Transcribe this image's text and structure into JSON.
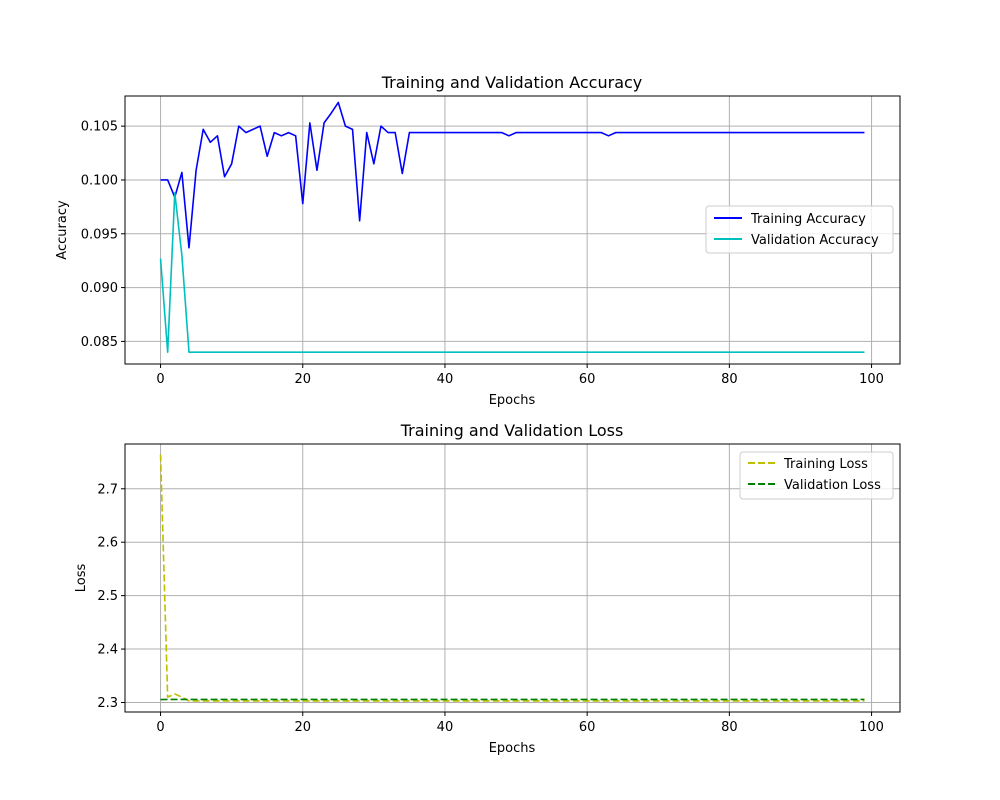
{
  "chart_data": [
    {
      "type": "line",
      "title": "Training and Validation Accuracy",
      "xlabel": "Epochs",
      "ylabel": "Accuracy",
      "xlim": [
        -5,
        104
      ],
      "ylim": [
        0.0829,
        0.1078
      ],
      "xticks": [
        0,
        20,
        40,
        60,
        80,
        100
      ],
      "yticks": [
        0.085,
        0.09,
        0.095,
        0.1,
        0.105
      ],
      "xtick_labels": [
        "0",
        "20",
        "40",
        "60",
        "80",
        "100"
      ],
      "ytick_labels": [
        "0.085",
        "0.090",
        "0.095",
        "0.100",
        "0.105"
      ],
      "grid": true,
      "legend_position": "center-right",
      "series": [
        {
          "name": "Training Accuracy",
          "color": "#0000ff",
          "dash": "solid",
          "x": [
            0,
            1,
            2,
            3,
            4,
            5,
            6,
            7,
            8,
            9,
            10,
            11,
            12,
            13,
            14,
            15,
            16,
            17,
            18,
            19,
            20,
            21,
            22,
            23,
            24,
            25,
            26,
            27,
            28,
            29,
            30,
            31,
            32,
            33,
            34,
            35,
            36,
            37,
            38,
            39,
            40,
            41,
            42,
            43,
            44,
            45,
            46,
            47,
            48,
            49,
            50,
            51,
            52,
            53,
            54,
            55,
            56,
            57,
            58,
            59,
            60,
            61,
            62,
            63,
            64,
            65,
            66,
            67,
            68,
            69,
            70,
            71,
            72,
            73,
            74,
            75,
            76,
            77,
            78,
            79,
            80,
            81,
            82,
            83,
            84,
            85,
            86,
            87,
            88,
            89,
            90,
            91,
            92,
            93,
            94,
            95,
            96,
            97,
            98,
            99
          ],
          "values": [
            0.1,
            0.1,
            0.0984,
            0.1007,
            0.0937,
            0.1009,
            0.1047,
            0.1035,
            0.1041,
            0.1003,
            0.1015,
            0.105,
            0.1044,
            0.1047,
            0.105,
            0.1022,
            0.1044,
            0.1041,
            0.1044,
            0.1041,
            0.0978,
            0.1053,
            0.1009,
            0.1053,
            0.1062,
            0.1072,
            0.105,
            0.1047,
            0.0962,
            0.1044,
            0.1015,
            0.105,
            0.1044,
            0.1044,
            0.1006,
            0.1044,
            0.1044,
            0.1044,
            0.1044,
            0.1044,
            0.1044,
            0.1044,
            0.1044,
            0.1044,
            0.1044,
            0.1044,
            0.1044,
            0.1044,
            0.1044,
            0.1041,
            0.1044,
            0.1044,
            0.1044,
            0.1044,
            0.1044,
            0.1044,
            0.1044,
            0.1044,
            0.1044,
            0.1044,
            0.1044,
            0.1044,
            0.1044,
            0.1041,
            0.1044,
            0.1044,
            0.1044,
            0.1044,
            0.1044,
            0.1044,
            0.1044,
            0.1044,
            0.1044,
            0.1044,
            0.1044,
            0.1044,
            0.1044,
            0.1044,
            0.1044,
            0.1044,
            0.1044,
            0.1044,
            0.1044,
            0.1044,
            0.1044,
            0.1044,
            0.1044,
            0.1044,
            0.1044,
            0.1044,
            0.1044,
            0.1044,
            0.1044,
            0.1044,
            0.1044,
            0.1044,
            0.1044,
            0.1044,
            0.1044,
            0.1044
          ]
        },
        {
          "name": "Validation Accuracy",
          "color": "#00bfbf",
          "dash": "solid",
          "x": [
            0,
            1,
            2,
            3,
            4,
            5,
            6,
            7,
            8,
            9,
            10,
            11,
            12,
            13,
            14,
            15,
            16,
            17,
            18,
            19,
            20,
            21,
            22,
            23,
            24,
            25,
            26,
            27,
            28,
            29,
            30,
            31,
            32,
            33,
            34,
            35,
            36,
            37,
            38,
            39,
            40,
            41,
            42,
            43,
            44,
            45,
            46,
            47,
            48,
            49,
            50,
            51,
            52,
            53,
            54,
            55,
            56,
            57,
            58,
            59,
            60,
            61,
            62,
            63,
            64,
            65,
            66,
            67,
            68,
            69,
            70,
            71,
            72,
            73,
            74,
            75,
            76,
            77,
            78,
            79,
            80,
            81,
            82,
            83,
            84,
            85,
            86,
            87,
            88,
            89,
            90,
            91,
            92,
            93,
            94,
            95,
            96,
            97,
            98,
            99
          ],
          "values": [
            0.0927,
            0.084,
            0.0988,
            0.093,
            0.084,
            0.084,
            0.084,
            0.084,
            0.084,
            0.084,
            0.084,
            0.084,
            0.084,
            0.084,
            0.084,
            0.084,
            0.084,
            0.084,
            0.084,
            0.084,
            0.084,
            0.084,
            0.084,
            0.084,
            0.084,
            0.084,
            0.084,
            0.084,
            0.084,
            0.084,
            0.084,
            0.084,
            0.084,
            0.084,
            0.084,
            0.084,
            0.084,
            0.084,
            0.084,
            0.084,
            0.084,
            0.084,
            0.084,
            0.084,
            0.084,
            0.084,
            0.084,
            0.084,
            0.084,
            0.084,
            0.084,
            0.084,
            0.084,
            0.084,
            0.084,
            0.084,
            0.084,
            0.084,
            0.084,
            0.084,
            0.084,
            0.084,
            0.084,
            0.084,
            0.084,
            0.084,
            0.084,
            0.084,
            0.084,
            0.084,
            0.084,
            0.084,
            0.084,
            0.084,
            0.084,
            0.084,
            0.084,
            0.084,
            0.084,
            0.084,
            0.084,
            0.084,
            0.084,
            0.084,
            0.084,
            0.084,
            0.084,
            0.084,
            0.084,
            0.084,
            0.084,
            0.084,
            0.084,
            0.084,
            0.084,
            0.084,
            0.084,
            0.084,
            0.084,
            0.084
          ]
        }
      ]
    },
    {
      "type": "line",
      "title": "Training and Validation Loss",
      "xlabel": "Epochs",
      "ylabel": "Loss",
      "xlim": [
        -5,
        104
      ],
      "ylim": [
        2.2822,
        2.7838
      ],
      "xticks": [
        0,
        20,
        40,
        60,
        80,
        100
      ],
      "yticks": [
        2.3,
        2.4,
        2.5,
        2.6,
        2.7
      ],
      "xtick_labels": [
        "0",
        "20",
        "40",
        "60",
        "80",
        "100"
      ],
      "ytick_labels": [
        "2.3",
        "2.4",
        "2.5",
        "2.6",
        "2.7"
      ],
      "grid": true,
      "legend_position": "top-right",
      "series": [
        {
          "name": "Training Loss",
          "color": "#bfbf00",
          "dash": "dashed",
          "x": [
            0,
            1,
            2,
            3,
            4,
            5,
            6,
            7,
            8,
            9,
            10,
            11,
            12,
            13,
            14,
            15,
            16,
            17,
            18,
            19,
            20,
            21,
            22,
            23,
            24,
            25,
            26,
            27,
            28,
            29,
            30,
            31,
            32,
            33,
            34,
            35,
            36,
            37,
            38,
            39,
            40,
            41,
            42,
            43,
            44,
            45,
            46,
            47,
            48,
            49,
            50,
            51,
            52,
            53,
            54,
            55,
            56,
            57,
            58,
            59,
            60,
            61,
            62,
            63,
            64,
            65,
            66,
            67,
            68,
            69,
            70,
            71,
            72,
            73,
            74,
            75,
            76,
            77,
            78,
            79,
            80,
            81,
            82,
            83,
            84,
            85,
            86,
            87,
            88,
            89,
            90,
            91,
            92,
            93,
            94,
            95,
            96,
            97,
            98,
            99
          ],
          "values": [
            2.764,
            2.31,
            2.316,
            2.31,
            2.303,
            2.303,
            2.303,
            2.303,
            2.303,
            2.303,
            2.303,
            2.303,
            2.303,
            2.303,
            2.303,
            2.303,
            2.303,
            2.303,
            2.303,
            2.303,
            2.303,
            2.303,
            2.303,
            2.303,
            2.303,
            2.303,
            2.303,
            2.303,
            2.303,
            2.303,
            2.303,
            2.303,
            2.303,
            2.303,
            2.303,
            2.303,
            2.303,
            2.303,
            2.303,
            2.303,
            2.303,
            2.303,
            2.303,
            2.303,
            2.303,
            2.303,
            2.303,
            2.303,
            2.303,
            2.303,
            2.303,
            2.303,
            2.303,
            2.303,
            2.303,
            2.303,
            2.303,
            2.303,
            2.303,
            2.303,
            2.303,
            2.303,
            2.303,
            2.303,
            2.303,
            2.303,
            2.303,
            2.303,
            2.303,
            2.303,
            2.303,
            2.303,
            2.303,
            2.303,
            2.303,
            2.303,
            2.303,
            2.303,
            2.303,
            2.303,
            2.303,
            2.303,
            2.303,
            2.303,
            2.303,
            2.303,
            2.303,
            2.303,
            2.303,
            2.303,
            2.303,
            2.303,
            2.303,
            2.303,
            2.303,
            2.303,
            2.303,
            2.303,
            2.303,
            2.303
          ]
        },
        {
          "name": "Validation Loss",
          "color": "#008000",
          "dash": "dashed",
          "x": [
            0,
            1,
            2,
            3,
            4,
            5,
            6,
            7,
            8,
            9,
            10,
            11,
            12,
            13,
            14,
            15,
            16,
            17,
            18,
            19,
            20,
            21,
            22,
            23,
            24,
            25,
            26,
            27,
            28,
            29,
            30,
            31,
            32,
            33,
            34,
            35,
            36,
            37,
            38,
            39,
            40,
            41,
            42,
            43,
            44,
            45,
            46,
            47,
            48,
            49,
            50,
            51,
            52,
            53,
            54,
            55,
            56,
            57,
            58,
            59,
            60,
            61,
            62,
            63,
            64,
            65,
            66,
            67,
            68,
            69,
            70,
            71,
            72,
            73,
            74,
            75,
            76,
            77,
            78,
            79,
            80,
            81,
            82,
            83,
            84,
            85,
            86,
            87,
            88,
            89,
            90,
            91,
            92,
            93,
            94,
            95,
            96,
            97,
            98,
            99
          ],
          "values": [
            2.3055,
            2.3057,
            2.3057,
            2.3058,
            2.3058,
            2.3058,
            2.3058,
            2.3058,
            2.3058,
            2.3058,
            2.3058,
            2.3058,
            2.3058,
            2.3058,
            2.3058,
            2.3058,
            2.3058,
            2.3058,
            2.3058,
            2.3058,
            2.3058,
            2.3058,
            2.3058,
            2.3058,
            2.3058,
            2.3058,
            2.3058,
            2.3058,
            2.3058,
            2.3058,
            2.3058,
            2.3058,
            2.3058,
            2.3058,
            2.3058,
            2.3058,
            2.3058,
            2.3058,
            2.3058,
            2.3058,
            2.3058,
            2.3058,
            2.3058,
            2.3058,
            2.3058,
            2.3058,
            2.3058,
            2.3058,
            2.3058,
            2.3058,
            2.3058,
            2.3058,
            2.3058,
            2.3058,
            2.3058,
            2.3058,
            2.3058,
            2.3058,
            2.3058,
            2.3058,
            2.3058,
            2.3058,
            2.3058,
            2.3058,
            2.3058,
            2.3058,
            2.3058,
            2.3058,
            2.3058,
            2.3058,
            2.3058,
            2.3058,
            2.3058,
            2.3058,
            2.3058,
            2.3058,
            2.3058,
            2.3058,
            2.3058,
            2.3058,
            2.3058,
            2.3058,
            2.3058,
            2.3058,
            2.3058,
            2.3058,
            2.3058,
            2.3058,
            2.3058,
            2.3058,
            2.3058,
            2.3058,
            2.3058,
            2.3058,
            2.3058,
            2.3058,
            2.3058,
            2.3058,
            2.3058,
            2.3058
          ]
        }
      ]
    }
  ]
}
